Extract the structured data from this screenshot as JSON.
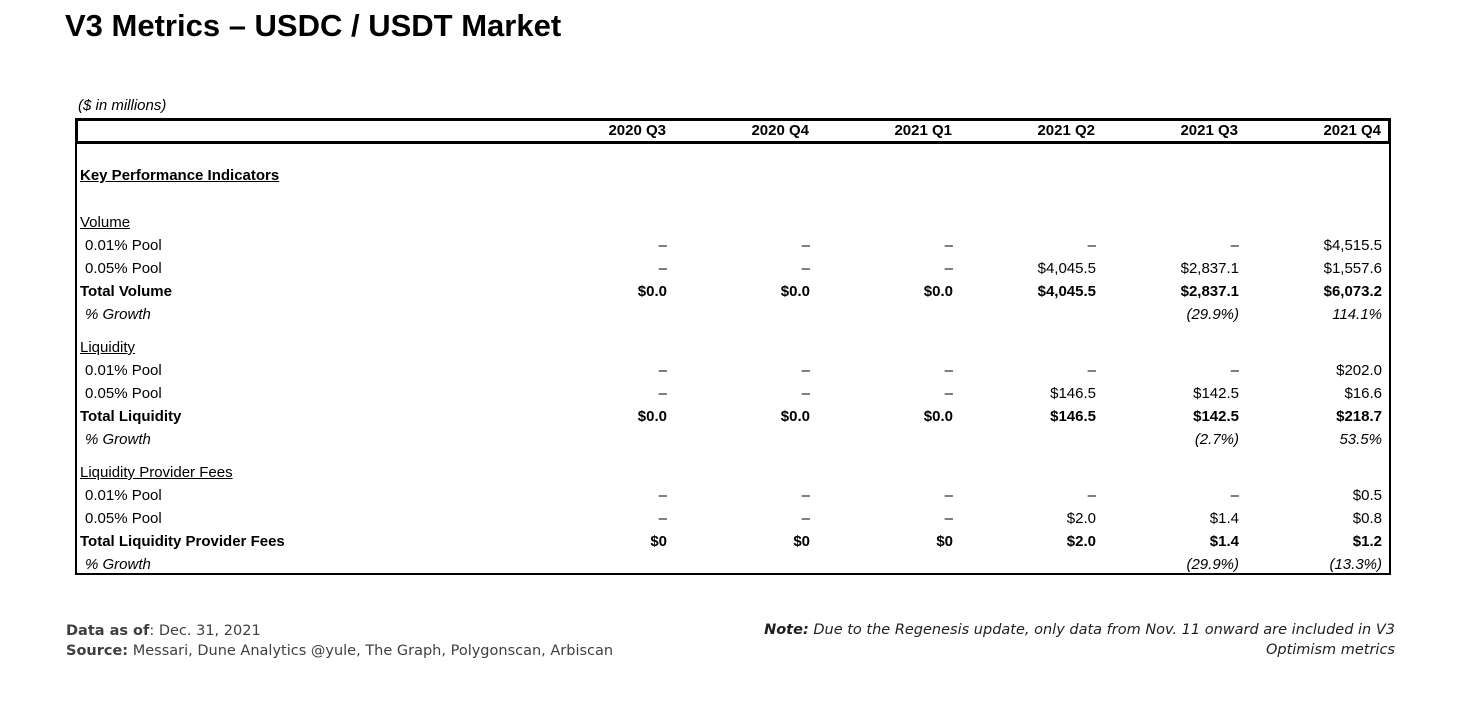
{
  "page": {
    "title": "V3 Metrics – USDC / USDT Market",
    "units_label": "($ in millions)"
  },
  "colors": {
    "text": "#000000",
    "border": "#000000",
    "footer_text": "#3f3f3f"
  },
  "table": {
    "columns": [
      "2020 Q3",
      "2020 Q4",
      "2021 Q1",
      "2021 Q2",
      "2021 Q3",
      "2021 Q4"
    ],
    "kpi_header": "Key Performance Indicators",
    "sections": [
      {
        "name": "Volume",
        "rows": [
          {
            "label": "0.01% Pool",
            "values": [
              "–",
              "–",
              "–",
              "–",
              "–",
              "$4,515.5"
            ]
          },
          {
            "label": "0.05% Pool",
            "values": [
              "–",
              "–",
              "–",
              "$4,045.5",
              "$2,837.1",
              "$1,557.6"
            ]
          },
          {
            "label": "Total Volume",
            "values": [
              "$0.0",
              "$0.0",
              "$0.0",
              "$4,045.5",
              "$2,837.1",
              "$6,073.2"
            ]
          },
          {
            "label": "% Growth",
            "values": [
              "",
              "",
              "",
              "",
              "(29.9%)",
              "114.1%"
            ]
          }
        ]
      },
      {
        "name": "Liquidity",
        "rows": [
          {
            "label": "0.01% Pool",
            "values": [
              "–",
              "–",
              "–",
              "–",
              "–",
              "$202.0"
            ]
          },
          {
            "label": "0.05% Pool",
            "values": [
              "–",
              "–",
              "–",
              "$146.5",
              "$142.5",
              "$16.6"
            ]
          },
          {
            "label": "Total Liquidity",
            "values": [
              "$0.0",
              "$0.0",
              "$0.0",
              "$146.5",
              "$142.5",
              "$218.7"
            ]
          },
          {
            "label": "% Growth",
            "values": [
              "",
              "",
              "",
              "",
              "(2.7%)",
              "53.5%"
            ]
          }
        ]
      },
      {
        "name": "Liquidity Provider Fees",
        "rows": [
          {
            "label": "0.01% Pool",
            "values": [
              "–",
              "–",
              "–",
              "–",
              "–",
              "$0.5"
            ]
          },
          {
            "label": "0.05% Pool",
            "values": [
              "–",
              "–",
              "–",
              "$2.0",
              "$1.4",
              "$0.8"
            ]
          },
          {
            "label": "Total Liquidity Provider Fees",
            "values": [
              "$0",
              "$0",
              "$0",
              "$2.0",
              "$1.4",
              "$1.2"
            ]
          },
          {
            "label": "% Growth",
            "values": [
              "",
              "",
              "",
              "",
              "(29.9%)",
              "(13.3%)"
            ]
          }
        ]
      }
    ]
  },
  "footer": {
    "data_as_of_label": "Data as of",
    "data_as_of_value": ": Dec. 31, 2021",
    "source_label": "Source:",
    "source_value": " Messari, Dune Analytics @yule, The Graph, Polygonscan, Arbiscan",
    "note_label": "Note:",
    "note_value": " Due to the Regenesis update, only data from Nov. 11 onward are included in V3 Optimism metrics"
  }
}
